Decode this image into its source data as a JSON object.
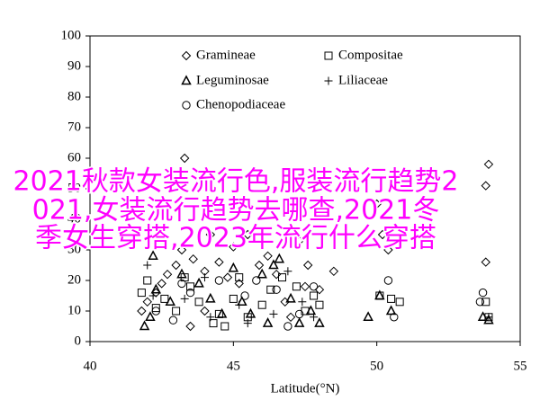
{
  "chart_data": {
    "type": "scatter",
    "x_label": "Latitude(°N)",
    "xlim": [
      40,
      55
    ],
    "xticks": [
      40,
      45,
      50,
      55
    ],
    "ylim": [
      0,
      100
    ],
    "yticks": [
      0,
      10,
      20,
      30,
      40,
      50,
      60,
      70,
      80,
      90,
      100
    ],
    "series": [
      {
        "name": "Gramineae",
        "color": "#000000",
        "marker": "diamond",
        "x": [
          41.8,
          42,
          42.3,
          42.5,
          42.7,
          43,
          43.2,
          43.3,
          43.6,
          44,
          44.2,
          44.5,
          44.8,
          45,
          45.2,
          45.5,
          45.9,
          46.2,
          46.5,
          46.8,
          47.3,
          47.5,
          47.6,
          48,
          48.5,
          50,
          50.2,
          50.4,
          53.9,
          53.8,
          53.8,
          43.5,
          44,
          47
        ],
        "values": [
          10,
          13,
          16,
          19,
          22,
          25,
          30,
          60,
          27,
          23,
          35,
          26,
          21,
          31,
          19,
          35,
          25,
          28,
          22,
          13,
          33,
          18,
          25,
          17,
          23,
          45,
          35,
          30,
          58,
          51,
          26,
          5,
          10,
          8
        ]
      },
      {
        "name": "Compositae",
        "color": "#000000",
        "marker": "square",
        "x": [
          41.8,
          42,
          42.3,
          42.6,
          43,
          43.3,
          43.5,
          43.8,
          44.3,
          44.5,
          45,
          45.2,
          45.5,
          46,
          46.3,
          46.7,
          47.2,
          47.5,
          47.8,
          48,
          50.1,
          50.5,
          50.8,
          53.8,
          53.9,
          44.7
        ],
        "values": [
          16,
          20,
          11,
          14,
          10,
          21,
          18,
          13,
          6,
          9,
          14,
          21,
          8,
          12,
          17,
          21,
          18,
          10,
          15,
          12,
          15,
          14,
          13,
          13,
          8,
          5
        ]
      },
      {
        "name": "Leguminosae",
        "color": "#000000",
        "marker": "triangle",
        "x": [
          41.9,
          42.1,
          42.3,
          42.8,
          43.2,
          43.8,
          44.2,
          44.6,
          45,
          45.3,
          45.6,
          46,
          46.2,
          46.6,
          47,
          47.3,
          47.7,
          48,
          49.7,
          50.1,
          50.5,
          53.7,
          53.9,
          42.2,
          46.4
        ],
        "values": [
          5,
          8,
          17,
          13,
          22,
          19,
          14,
          9,
          24,
          13,
          9,
          22,
          6,
          27,
          14,
          6,
          10,
          6,
          8,
          15,
          10,
          8,
          7,
          28,
          25
        ]
      },
      {
        "name": "Liliaceae",
        "color": "#000000",
        "marker": "plus",
        "x": [
          42,
          42.2,
          43.3,
          44,
          44.2,
          45.2,
          45.5,
          46.4,
          46.9,
          47.4,
          47.8,
          53.9
        ],
        "values": [
          25,
          15,
          14,
          21,
          8,
          12,
          6,
          9,
          23,
          13,
          8,
          8
        ]
      },
      {
        "name": "Chenopodiaceae",
        "color": "#000000",
        "marker": "circle",
        "x": [
          42.3,
          42.9,
          43.2,
          43.5,
          44.5,
          45.4,
          45.8,
          46.5,
          46.9,
          47.3,
          47.8,
          50.4,
          50.6,
          53.7,
          53.6
        ],
        "values": [
          10,
          7,
          19,
          16,
          20,
          15,
          20,
          17,
          5,
          9,
          18,
          20,
          8,
          16,
          13
        ]
      }
    ]
  },
  "overlay_lines": [
    "2021秋款女装流行色,服装流行趋势2",
    "021,女装流行趋势去哪查,2021冬",
    "季女生穿搭,2023年流行什么穿搭"
  ]
}
